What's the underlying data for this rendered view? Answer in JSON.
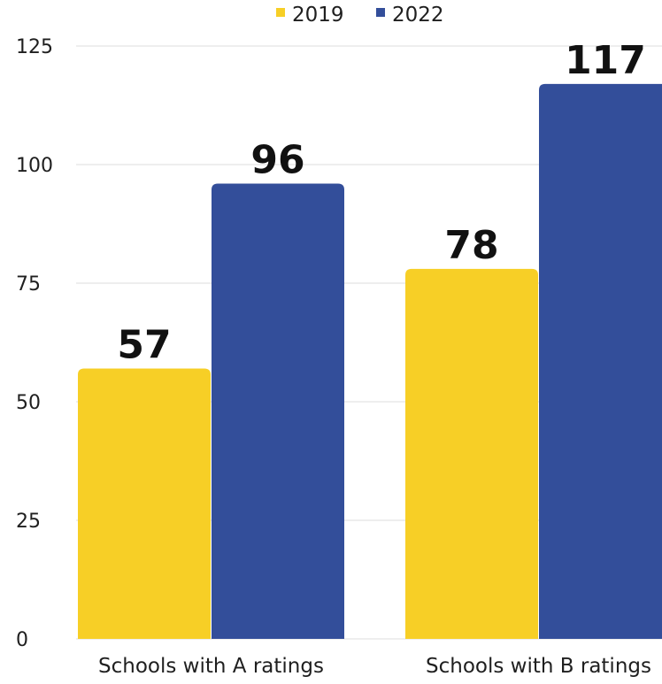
{
  "chart_data": {
    "type": "bar",
    "title": "",
    "xlabel": "",
    "ylabel": "",
    "categories": [
      "Schools with A ratings",
      "Schools with B ratings"
    ],
    "series": [
      {
        "name": "2019",
        "values": [
          57,
          78
        ],
        "color": "#f7cf26"
      },
      {
        "name": "2022",
        "values": [
          96,
          117
        ],
        "color": "#334e9a"
      }
    ],
    "ylim": [
      0,
      125
    ],
    "yticks": [
      0,
      25,
      50,
      75,
      100,
      125
    ],
    "grid": true,
    "legend_position": "top",
    "gridline_color": "#dcdcdc"
  }
}
